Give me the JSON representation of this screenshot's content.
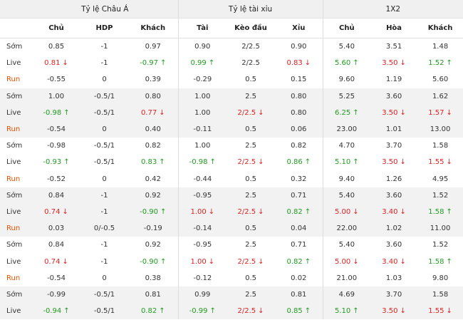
{
  "groups": [
    "Tỷ lệ Châu Á",
    "Tỷ lệ tài xỉu",
    "1X2"
  ],
  "columns": [
    "Chủ",
    "HDP",
    "Khách",
    "Tài",
    "Kèo đầu",
    "Xỉu",
    "Chủ",
    "Hòa",
    "Khách"
  ],
  "colors": {
    "up": "#1f9d1f",
    "down": "#e02020",
    "run_label": "#e65100",
    "shade": "#f2f2f2"
  },
  "rows": [
    {
      "label": "Sớm",
      "shade": false,
      "cells": [
        {
          "v": "0.85"
        },
        {
          "v": "-1"
        },
        {
          "v": "0.97"
        },
        {
          "v": "0.90"
        },
        {
          "v": "2/2.5"
        },
        {
          "v": "0.90"
        },
        {
          "v": "5.40"
        },
        {
          "v": "3.51"
        },
        {
          "v": "1.48"
        }
      ]
    },
    {
      "label": "Live",
      "shade": false,
      "cells": [
        {
          "v": "0.81",
          "d": "down"
        },
        {
          "v": "-1"
        },
        {
          "v": "-0.97",
          "d": "up"
        },
        {
          "v": "0.99",
          "d": "up"
        },
        {
          "v": "2/2.5"
        },
        {
          "v": "0.83",
          "d": "down"
        },
        {
          "v": "5.60",
          "d": "up"
        },
        {
          "v": "3.50",
          "d": "down"
        },
        {
          "v": "1.52",
          "d": "up"
        }
      ]
    },
    {
      "label": "Run",
      "shade": false,
      "cells": [
        {
          "v": "-0.55"
        },
        {
          "v": "0"
        },
        {
          "v": "0.39"
        },
        {
          "v": "-0.29"
        },
        {
          "v": "0.5"
        },
        {
          "v": "0.15"
        },
        {
          "v": "9.60"
        },
        {
          "v": "1.19"
        },
        {
          "v": "5.60"
        }
      ]
    },
    {
      "label": "Sớm",
      "shade": true,
      "cells": [
        {
          "v": "1.00"
        },
        {
          "v": "-0.5/1"
        },
        {
          "v": "0.80"
        },
        {
          "v": "1.00"
        },
        {
          "v": "2.5"
        },
        {
          "v": "0.80"
        },
        {
          "v": "5.25"
        },
        {
          "v": "3.60"
        },
        {
          "v": "1.62"
        }
      ]
    },
    {
      "label": "Live",
      "shade": true,
      "cells": [
        {
          "v": "-0.98",
          "d": "up"
        },
        {
          "v": "-0.5/1"
        },
        {
          "v": "0.77",
          "d": "down"
        },
        {
          "v": "1.00"
        },
        {
          "v": "2/2.5",
          "d": "down"
        },
        {
          "v": "0.80"
        },
        {
          "v": "6.25",
          "d": "up"
        },
        {
          "v": "3.50",
          "d": "down"
        },
        {
          "v": "1.57",
          "d": "down"
        }
      ]
    },
    {
      "label": "Run",
      "shade": true,
      "cells": [
        {
          "v": "-0.54"
        },
        {
          "v": "0"
        },
        {
          "v": "0.40"
        },
        {
          "v": "-0.11"
        },
        {
          "v": "0.5"
        },
        {
          "v": "0.06"
        },
        {
          "v": "23.00"
        },
        {
          "v": "1.01"
        },
        {
          "v": "13.00"
        }
      ]
    },
    {
      "label": "Sớm",
      "shade": false,
      "cells": [
        {
          "v": "-0.98"
        },
        {
          "v": "-0.5/1"
        },
        {
          "v": "0.82"
        },
        {
          "v": "1.00"
        },
        {
          "v": "2.5"
        },
        {
          "v": "0.82"
        },
        {
          "v": "4.70"
        },
        {
          "v": "3.70"
        },
        {
          "v": "1.58"
        }
      ]
    },
    {
      "label": "Live",
      "shade": false,
      "cells": [
        {
          "v": "-0.93",
          "d": "up"
        },
        {
          "v": "-0.5/1"
        },
        {
          "v": "0.83",
          "d": "up"
        },
        {
          "v": "-0.98",
          "d": "up"
        },
        {
          "v": "2/2.5",
          "d": "down"
        },
        {
          "v": "0.86",
          "d": "up"
        },
        {
          "v": "5.10",
          "d": "up"
        },
        {
          "v": "3.50",
          "d": "down"
        },
        {
          "v": "1.55",
          "d": "down"
        }
      ]
    },
    {
      "label": "Run",
      "shade": false,
      "cells": [
        {
          "v": "-0.52"
        },
        {
          "v": "0"
        },
        {
          "v": "0.42"
        },
        {
          "v": "-0.44"
        },
        {
          "v": "0.5"
        },
        {
          "v": "0.32"
        },
        {
          "v": "9.40"
        },
        {
          "v": "1.26"
        },
        {
          "v": "4.95"
        }
      ]
    },
    {
      "label": "Sớm",
      "shade": true,
      "cells": [
        {
          "v": "0.84"
        },
        {
          "v": "-1"
        },
        {
          "v": "0.92"
        },
        {
          "v": "-0.95"
        },
        {
          "v": "2.5"
        },
        {
          "v": "0.71"
        },
        {
          "v": "5.40"
        },
        {
          "v": "3.60"
        },
        {
          "v": "1.52"
        }
      ]
    },
    {
      "label": "Live",
      "shade": true,
      "cells": [
        {
          "v": "0.74",
          "d": "down"
        },
        {
          "v": "-1"
        },
        {
          "v": "-0.90",
          "d": "up"
        },
        {
          "v": "1.00",
          "d": "down"
        },
        {
          "v": "2/2.5",
          "d": "down"
        },
        {
          "v": "0.82",
          "d": "up"
        },
        {
          "v": "5.00",
          "d": "down"
        },
        {
          "v": "3.40",
          "d": "down"
        },
        {
          "v": "1.58",
          "d": "up"
        }
      ]
    },
    {
      "label": "Run",
      "shade": true,
      "cells": [
        {
          "v": "0.03"
        },
        {
          "v": "0/-0.5"
        },
        {
          "v": "-0.19"
        },
        {
          "v": "-0.14"
        },
        {
          "v": "0.5"
        },
        {
          "v": "0.04"
        },
        {
          "v": "22.00"
        },
        {
          "v": "1.02"
        },
        {
          "v": "11.00"
        }
      ]
    },
    {
      "label": "Sớm",
      "shade": false,
      "cells": [
        {
          "v": "0.84"
        },
        {
          "v": "-1"
        },
        {
          "v": "0.92"
        },
        {
          "v": "-0.95"
        },
        {
          "v": "2.5"
        },
        {
          "v": "0.71"
        },
        {
          "v": "5.40"
        },
        {
          "v": "3.60"
        },
        {
          "v": "1.52"
        }
      ]
    },
    {
      "label": "Live",
      "shade": false,
      "cells": [
        {
          "v": "0.74",
          "d": "down"
        },
        {
          "v": "-1"
        },
        {
          "v": "-0.90",
          "d": "up"
        },
        {
          "v": "1.00",
          "d": "down"
        },
        {
          "v": "2/2.5",
          "d": "down"
        },
        {
          "v": "0.82",
          "d": "up"
        },
        {
          "v": "5.00",
          "d": "down"
        },
        {
          "v": "3.40",
          "d": "down"
        },
        {
          "v": "1.58",
          "d": "up"
        }
      ]
    },
    {
      "label": "Run",
      "shade": false,
      "cells": [
        {
          "v": "-0.54"
        },
        {
          "v": "0"
        },
        {
          "v": "0.38"
        },
        {
          "v": "-0.12"
        },
        {
          "v": "0.5"
        },
        {
          "v": "0.02"
        },
        {
          "v": "21.00"
        },
        {
          "v": "1.03"
        },
        {
          "v": "9.80"
        }
      ]
    },
    {
      "label": "Sớm",
      "shade": true,
      "cells": [
        {
          "v": "-0.99"
        },
        {
          "v": "-0.5/1"
        },
        {
          "v": "0.81"
        },
        {
          "v": "0.99"
        },
        {
          "v": "2.5"
        },
        {
          "v": "0.81"
        },
        {
          "v": "4.69"
        },
        {
          "v": "3.70"
        },
        {
          "v": "1.58"
        }
      ]
    },
    {
      "label": "Live",
      "shade": true,
      "cells": [
        {
          "v": "-0.94",
          "d": "up"
        },
        {
          "v": "-0.5/1"
        },
        {
          "v": "0.82",
          "d": "up"
        },
        {
          "v": "-0.99",
          "d": "up"
        },
        {
          "v": "2/2.5",
          "d": "down"
        },
        {
          "v": "0.85",
          "d": "up"
        },
        {
          "v": "5.10",
          "d": "up"
        },
        {
          "v": "3.50",
          "d": "down"
        },
        {
          "v": "1.55",
          "d": "down"
        }
      ]
    }
  ]
}
